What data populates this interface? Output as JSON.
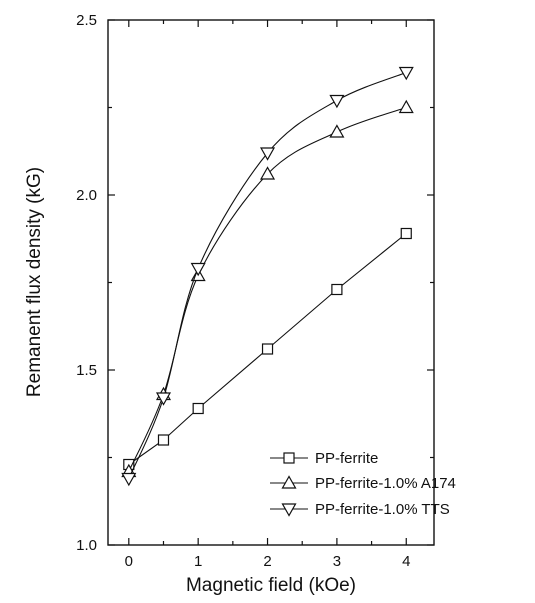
{
  "chart_data": {
    "type": "line",
    "xlabel": "Magnetic field (kOe)",
    "ylabel": "Remanent flux density (kG)",
    "xlim": [
      -0.3,
      4.4
    ],
    "ylim": [
      1.0,
      2.5
    ],
    "xticks": [
      0,
      1,
      2,
      3,
      4
    ],
    "xtick_labels": [
      "0",
      "1",
      "2",
      "3",
      "4"
    ],
    "yticks": [
      1.0,
      1.5,
      2.0,
      2.5
    ],
    "ytick_labels": [
      "1.0",
      "1.5",
      "2.0",
      "2.5"
    ],
    "x_minor_ticks": [
      0.5,
      1.5,
      2.5,
      3.5
    ],
    "y_minor_ticks": [
      1.25,
      1.75,
      2.25
    ],
    "grid": false,
    "legend_position": "bottom-right",
    "series": [
      {
        "name": "PP-ferrite",
        "marker": "square",
        "x": [
          0,
          0.5,
          1,
          2,
          3,
          4
        ],
        "values": [
          1.23,
          1.3,
          1.39,
          1.56,
          1.73,
          1.89
        ]
      },
      {
        "name": "PP-ferrite-1.0% A174",
        "marker": "triangle-up",
        "x": [
          0,
          0.5,
          1,
          2,
          3,
          4
        ],
        "values": [
          1.21,
          1.43,
          1.77,
          2.06,
          2.18,
          2.25
        ]
      },
      {
        "name": "PP-ferrite-1.0% TTS",
        "marker": "triangle-down",
        "x": [
          0,
          0.5,
          1,
          2,
          3,
          4
        ],
        "values": [
          1.19,
          1.42,
          1.79,
          2.12,
          2.27,
          2.35
        ]
      }
    ]
  }
}
